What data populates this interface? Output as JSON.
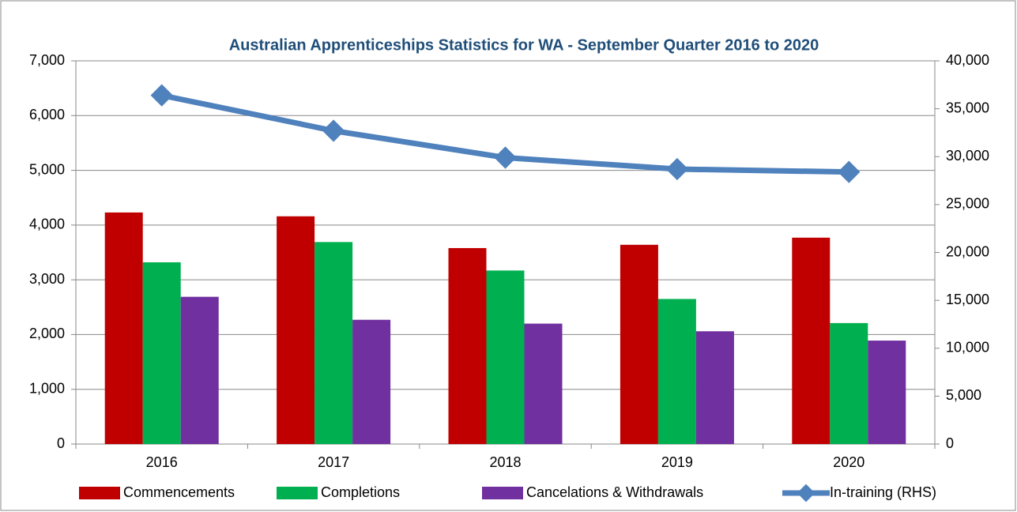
{
  "chart_data": {
    "type": "bar",
    "title": "Australian Apprenticeships Statistics for WA - September Quarter  2016 to 2020",
    "categories": [
      "2016",
      "2017",
      "2018",
      "2019",
      "2020"
    ],
    "series": [
      {
        "name": "Commencements",
        "color": "#c00000",
        "values": [
          4230,
          4160,
          3580,
          3640,
          3770
        ]
      },
      {
        "name": "Completions",
        "color": "#00b050",
        "values": [
          3320,
          3690,
          3170,
          2650,
          2210
        ]
      },
      {
        "name": "Cancelations & Withdrawals",
        "color": "#7030a0",
        "values": [
          2690,
          2270,
          2200,
          2060,
          1890
        ]
      },
      {
        "name": "In-training (RHS)",
        "color": "#4f81bd",
        "type": "line",
        "axis": "y2",
        "values": [
          36400,
          32700,
          29900,
          28700,
          28400
        ]
      }
    ],
    "ylim": [
      0,
      7000
    ],
    "yticks": [
      0,
      {
        "value": 1000,
        "label": "1,000"
      },
      {
        "value": 2000,
        "label": "2,000"
      },
      {
        "value": 3000,
        "label": "3,000"
      },
      {
        "value": 4000,
        "label": "4,000"
      },
      {
        "value": 5000,
        "label": "5,000"
      },
      {
        "value": 6000,
        "label": "6,000"
      },
      {
        "value": 7000,
        "label": "7,000"
      }
    ],
    "y2lim": [
      0,
      40000
    ],
    "y2ticks": [
      0,
      {
        "value": 5000,
        "label": "5,000"
      },
      {
        "value": 10000,
        "label": "10,000"
      },
      {
        "value": 15000,
        "label": "15,000"
      },
      {
        "value": 20000,
        "label": "20,000"
      },
      {
        "value": 25000,
        "label": "25,000"
      },
      {
        "value": 30000,
        "label": "30,000"
      },
      {
        "value": 35000,
        "label": "35,000"
      },
      {
        "value": 40000,
        "label": "40,000"
      }
    ],
    "grid": true,
    "legend": "bottom"
  }
}
